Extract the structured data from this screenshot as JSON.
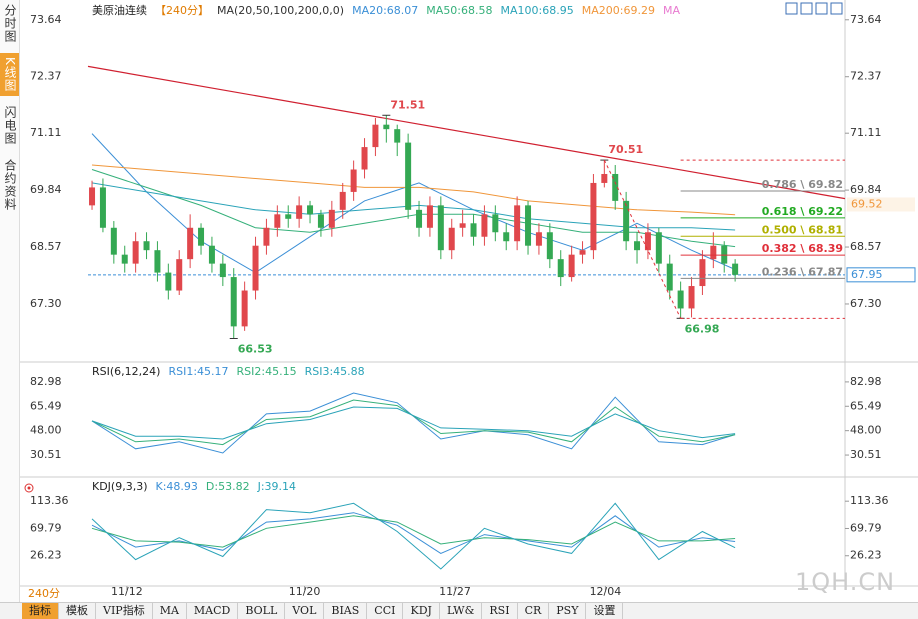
{
  "sidebar": {
    "tabs": [
      "分时图",
      "K线图",
      "闪电图",
      "合约资料"
    ],
    "active": 1
  },
  "chart_data": [
    {
      "type": "candlestick",
      "title": "美原油连续",
      "period": "【240分】",
      "indicator": "MA(20,50,100,200,0,0)",
      "extra_label": "MA",
      "up_color": "#e0474c",
      "down_color": "#34a853",
      "open": [
        69.5,
        69.9,
        69.0,
        68.4,
        68.2,
        68.7,
        68.5,
        68.0,
        67.6,
        68.3,
        69.0,
        68.6,
        68.2,
        67.9,
        66.8,
        67.6,
        68.6,
        69.0,
        69.3,
        69.2,
        69.5,
        69.3,
        69.0,
        69.4,
        69.8,
        70.3,
        70.8,
        71.3,
        71.2,
        70.9,
        69.4,
        69.0,
        69.5,
        68.5,
        69.0,
        69.1,
        68.8,
        69.3,
        68.9,
        68.7,
        69.5,
        68.6,
        68.9,
        68.3,
        67.9,
        68.4,
        68.5,
        70.0,
        70.2,
        69.6,
        68.7,
        68.5,
        68.9,
        68.2,
        67.6,
        67.2,
        67.7,
        68.3,
        68.6,
        68.2
      ],
      "high": [
        70.05,
        70.1,
        69.15,
        68.6,
        68.9,
        68.9,
        68.7,
        68.2,
        68.5,
        69.3,
        69.1,
        68.8,
        68.4,
        68.1,
        67.8,
        68.8,
        69.2,
        69.5,
        69.5,
        69.7,
        69.6,
        69.4,
        69.6,
        70.0,
        70.5,
        71.0,
        71.45,
        71.51,
        71.3,
        71.1,
        69.6,
        69.7,
        69.7,
        69.2,
        69.4,
        69.3,
        69.5,
        69.5,
        69.1,
        69.7,
        69.6,
        69.1,
        69.1,
        68.5,
        68.6,
        68.7,
        70.2,
        70.51,
        70.4,
        69.8,
        68.9,
        69.1,
        69.0,
        68.4,
        67.8,
        67.9,
        68.5,
        68.9,
        68.7,
        68.3
      ],
      "low": [
        69.4,
        68.9,
        68.2,
        68.0,
        68.0,
        68.3,
        67.8,
        67.4,
        67.5,
        68.1,
        68.4,
        68.0,
        67.7,
        66.53,
        66.7,
        67.4,
        68.4,
        68.8,
        69.0,
        69.0,
        69.1,
        68.8,
        68.8,
        69.2,
        69.6,
        70.1,
        70.6,
        70.9,
        70.6,
        69.2,
        68.8,
        68.8,
        68.3,
        68.3,
        68.8,
        68.6,
        68.6,
        68.7,
        68.5,
        68.5,
        68.4,
        68.4,
        68.1,
        67.7,
        67.8,
        68.2,
        68.3,
        69.9,
        69.4,
        68.5,
        68.2,
        68.3,
        68.0,
        67.4,
        66.98,
        67.0,
        67.5,
        68.1,
        68.0,
        67.8
      ],
      "close": [
        69.9,
        69.0,
        68.4,
        68.2,
        68.7,
        68.5,
        68.0,
        67.6,
        68.3,
        69.0,
        68.6,
        68.2,
        67.9,
        66.8,
        67.6,
        68.6,
        69.0,
        69.3,
        69.2,
        69.5,
        69.3,
        69.0,
        69.4,
        69.8,
        70.3,
        70.8,
        71.3,
        71.2,
        70.9,
        69.4,
        69.0,
        69.5,
        68.5,
        69.0,
        69.1,
        68.8,
        69.3,
        68.9,
        68.7,
        69.5,
        68.6,
        68.9,
        68.3,
        67.9,
        68.4,
        68.5,
        70.0,
        70.2,
        69.6,
        68.7,
        68.5,
        68.9,
        68.2,
        67.6,
        67.2,
        67.7,
        68.3,
        68.6,
        68.2,
        67.95
      ],
      "xlim": [
        -0.37,
        69.08
      ],
      "ylim": [
        66.05,
        73.97
      ],
      "yticks": [
        73.64,
        72.37,
        71.11,
        69.84,
        68.57,
        {
          "value": 67.3,
          "label": "67.30"
        }
      ],
      "xticks": [
        {
          "value": 3.2,
          "label": "11/12"
        },
        {
          "value": 19.5,
          "label": "11/20"
        },
        {
          "value": 33.3,
          "label": "11/27"
        },
        {
          "value": 47.1,
          "label": "12/04"
        }
      ],
      "series": [
        {
          "name": "MA20:68.07",
          "color": "#3b8fd6",
          "x": [
            0,
            5,
            10,
            15,
            20,
            25,
            30,
            35,
            40,
            45,
            50,
            55,
            59
          ],
          "values": [
            71.1,
            69.8,
            68.7,
            68.0,
            68.8,
            69.6,
            70.0,
            69.4,
            68.9,
            68.5,
            69.1,
            68.5,
            68.07
          ]
        },
        {
          "name": "MA50:68.58",
          "color": "#35b07a",
          "x": [
            0,
            5,
            10,
            15,
            20,
            25,
            30,
            35,
            40,
            45,
            50,
            55,
            59
          ],
          "values": [
            70.3,
            69.9,
            69.5,
            69.0,
            68.9,
            69.1,
            69.3,
            69.3,
            69.1,
            68.9,
            68.9,
            68.7,
            68.58
          ]
        },
        {
          "name": "MA100:68.95",
          "color": "#2aa3b8",
          "x": [
            0,
            5,
            10,
            15,
            20,
            25,
            30,
            35,
            40,
            45,
            50,
            55,
            59
          ],
          "values": [
            70.0,
            69.8,
            69.6,
            69.4,
            69.3,
            69.4,
            69.5,
            69.4,
            69.2,
            69.1,
            69.0,
            69.0,
            68.95
          ]
        },
        {
          "name": "MA200:69.29",
          "color": "#f0963a",
          "x": [
            0,
            5,
            10,
            15,
            20,
            25,
            30,
            35,
            40,
            45,
            50,
            55,
            59
          ],
          "values": [
            70.4,
            70.3,
            70.2,
            70.1,
            70.0,
            69.9,
            69.9,
            69.8,
            69.6,
            69.5,
            69.4,
            69.35,
            69.29
          ]
        }
      ],
      "trendline": {
        "color": "#d02030",
        "x": [
          -0.37,
          69.08
        ],
        "values": [
          72.6,
          69.65
        ]
      },
      "extremes": [
        {
          "x": 13,
          "value": 66.53,
          "color": "#34a853"
        },
        {
          "x": 47,
          "value": 70.51,
          "color": "#e0474c"
        },
        {
          "x": 27,
          "value": 71.51,
          "color": "#e0474c"
        },
        {
          "x": 54,
          "value": 66.98,
          "color": "#34a853"
        }
      ],
      "fib_levels": [
        {
          "value": 69.82,
          "label": "0.786 \\ 69.82",
          "color": "#888888"
        },
        {
          "value": 69.22,
          "label": "0.618 \\ 69.22",
          "color": "#22aa22"
        },
        {
          "value": 68.81,
          "label": "0.500 \\ 68.81",
          "color": "#b0b000"
        },
        {
          "value": 68.39,
          "label": "0.382 \\ 68.39",
          "color": "#e0303a"
        },
        {
          "value": 67.87,
          "label": "0.236 \\ 67.87",
          "color": "#888888"
        }
      ],
      "price_markers": [
        {
          "value": 69.52,
          "color": "#f0963a"
        },
        {
          "value": 67.95,
          "color": "#3b8fd6",
          "line": true
        }
      ]
    },
    {
      "type": "line",
      "title": "RSI(6,12,24)",
      "ylim": [
        16.2,
        95.1
      ],
      "yticks": [
        82.98,
        65.49,
        {
          "value": 48,
          "label": "48.00"
        },
        30.51
      ],
      "series": [
        {
          "name": "RSI1:45.17",
          "color": "#3b8fd6",
          "x": [
            0,
            4,
            8,
            12,
            16,
            20,
            24,
            28,
            32,
            36,
            40,
            44,
            48,
            52,
            56,
            59
          ],
          "values": [
            55,
            35,
            40,
            32,
            60,
            62,
            75,
            68,
            42,
            48,
            45,
            35,
            72,
            40,
            38,
            45.17
          ]
        },
        {
          "name": "RSI2:45.15",
          "color": "#35b07a",
          "x": [
            0,
            4,
            8,
            12,
            16,
            20,
            24,
            28,
            32,
            36,
            40,
            44,
            48,
            52,
            56,
            59
          ],
          "values": [
            55,
            40,
            42,
            38,
            56,
            58,
            70,
            66,
            46,
            48,
            47,
            40,
            65,
            44,
            40,
            45.15
          ]
        },
        {
          "name": "RSI3:45.88",
          "color": "#2aa3b8",
          "x": [
            0,
            4,
            8,
            12,
            16,
            20,
            24,
            28,
            32,
            36,
            40,
            44,
            48,
            52,
            56,
            59
          ],
          "values": [
            55,
            44,
            44,
            42,
            53,
            56,
            65,
            64,
            50,
            49,
            48,
            44,
            60,
            48,
            43,
            45.88
          ]
        }
      ]
    },
    {
      "type": "line",
      "title": "KDJ(9,3,3)",
      "ylim": [
        -20.5,
        147.2
      ],
      "yticks": [
        113.36,
        69.79,
        26.23
      ],
      "series": [
        {
          "name": "K:48.93",
          "color": "#3b8fd6",
          "x": [
            0,
            4,
            8,
            12,
            16,
            20,
            24,
            28,
            32,
            36,
            40,
            44,
            48,
            52,
            56,
            59
          ],
          "values": [
            75,
            40,
            50,
            35,
            80,
            85,
            95,
            75,
            30,
            60,
            50,
            40,
            90,
            40,
            55,
            48.93
          ]
        },
        {
          "name": "D:53.82",
          "color": "#35b07a",
          "x": [
            0,
            4,
            8,
            12,
            16,
            20,
            24,
            28,
            32,
            36,
            40,
            44,
            48,
            52,
            56,
            59
          ],
          "values": [
            70,
            50,
            48,
            40,
            70,
            80,
            90,
            80,
            45,
            55,
            52,
            45,
            80,
            50,
            50,
            53.82
          ]
        },
        {
          "name": "J:39.14",
          "color": "#2aa3b8",
          "x": [
            0,
            4,
            8,
            12,
            16,
            20,
            24,
            28,
            32,
            36,
            40,
            44,
            48,
            52,
            56,
            59
          ],
          "values": [
            85,
            20,
            55,
            25,
            100,
            95,
            110,
            65,
            5,
            70,
            45,
            30,
            110,
            20,
            65,
            39.14
          ]
        }
      ]
    }
  ],
  "period_selector": "240分",
  "watermark": "1QH.CN",
  "toolbar": {
    "tabs": [
      "指标",
      "模板",
      "VIP指标",
      "MA",
      "MACD",
      "BOLL",
      "VOL",
      "BIAS",
      "CCI",
      "KDJ",
      "LW&",
      "RSI",
      "CR",
      "PSY",
      "设置"
    ],
    "active": 0
  }
}
